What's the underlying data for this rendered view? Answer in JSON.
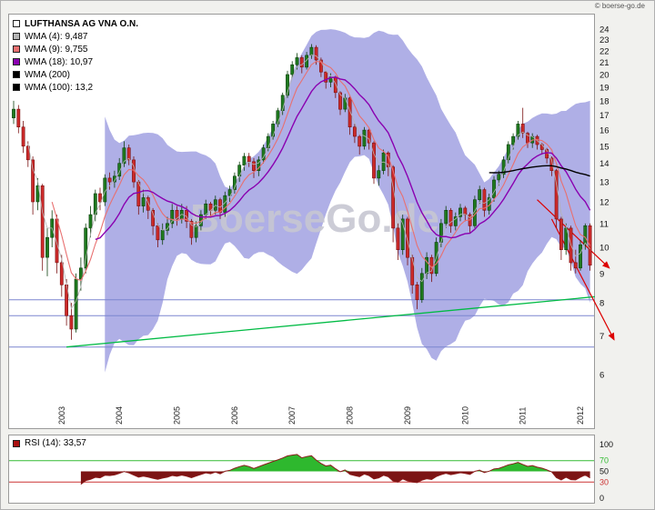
{
  "page": {
    "credit": "© boerse-go.de",
    "background": "#f1f1ee"
  },
  "main_chart": {
    "watermark": "BoerseGo.de",
    "watermark_color": "#c6c6d2"
  },
  "chart_data": {
    "type": "candlestick",
    "title": "LUFTHANSA AG VNA O.N.",
    "scale": "log",
    "y_ticks": [
      24,
      23,
      22,
      21,
      20,
      19,
      18,
      17,
      16,
      15,
      14,
      13,
      12,
      11,
      10,
      9,
      8,
      7,
      6
    ],
    "x_ticks": [
      "2003",
      "2004",
      "2005",
      "2006",
      "2007",
      "2008",
      "2009",
      "2010",
      "2011",
      "2012"
    ],
    "ylim": [
      5.6,
      24.5
    ],
    "candle_colors": {
      "up_fill": "#1f7a1f",
      "up_stroke": "#0c3f0c",
      "down_fill": "#cc2a2a",
      "down_stroke": "#7a1010"
    },
    "band": {
      "name": "envelope-band",
      "period": 20,
      "stdev": 2,
      "color": "#9b9be0",
      "opacity": 0.8
    },
    "overlays": [
      {
        "name": "WMA (4)",
        "period": 4,
        "value": "9,487",
        "color": "#b4b4b4",
        "width": 0.8
      },
      {
        "name": "WMA (9)",
        "period": 9,
        "value": "9,755",
        "color": "#e87070",
        "width": 1.1
      },
      {
        "name": "WMA (18)",
        "period": 18,
        "value": "10,97",
        "color": "#8a00b0",
        "width": 1.4
      },
      {
        "name": "WMA (200)",
        "period": 200,
        "value": "",
        "color": "#000000",
        "width": 1.2
      },
      {
        "name": "WMA (100)",
        "period": 100,
        "value": "13,2",
        "color": "#000000",
        "width": 1.4
      }
    ],
    "support": {
      "levels": [
        8.1,
        7.6,
        6.7
      ],
      "color": "#7b86cf"
    },
    "trendlines": [
      {
        "name": "ascending-support",
        "color": "#00bb44",
        "from_index": 11,
        "from_price": 6.7,
        "to_index": 121,
        "to_price": 8.2,
        "arrow": false,
        "width": 1.3
      },
      {
        "name": "downtrend-1",
        "color": "#dd0000",
        "from_index": 109,
        "from_price": 12.1,
        "to_index": 124,
        "to_price": 9.2,
        "arrow": true,
        "width": 1.2
      },
      {
        "name": "downtrend-2",
        "color": "#dd0000",
        "from_index": 112,
        "from_price": 11.2,
        "to_index": 125,
        "to_price": 6.9,
        "arrow": true,
        "width": 1.2
      }
    ],
    "rsi": {
      "label": "RSI (14): 33,57",
      "period": 14,
      "current": "33,57",
      "upper": 70,
      "lower": 30,
      "y_ticks": [
        100,
        70,
        50,
        30,
        0
      ],
      "line_color": "#8b1a1a",
      "fill_above": "#2eb82e",
      "fill_below": "#7c1414",
      "upper_color": "#33bb33",
      "lower_color": "#cc3333",
      "swatch_color": "#aa1111"
    },
    "candles": [
      [
        "2002-03",
        16.8,
        18.0,
        16.4,
        17.4
      ],
      [
        "2002-04",
        17.4,
        17.7,
        15.8,
        16.2
      ],
      [
        "2002-05",
        16.2,
        16.6,
        14.6,
        15.0
      ],
      [
        "2002-06",
        15.0,
        15.3,
        13.8,
        14.2
      ],
      [
        "2002-07",
        14.2,
        14.4,
        11.4,
        12.0
      ],
      [
        "2002-08",
        12.0,
        13.2,
        11.6,
        12.8
      ],
      [
        "2002-09",
        12.8,
        12.9,
        9.1,
        9.6
      ],
      [
        "2002-10",
        9.6,
        10.8,
        8.9,
        10.4
      ],
      [
        "2002-11",
        10.4,
        11.6,
        10.0,
        11.2
      ],
      [
        "2002-12",
        11.2,
        11.4,
        9.0,
        9.4
      ],
      [
        "2003-01",
        9.4,
        9.7,
        8.2,
        8.6
      ],
      [
        "2003-02",
        8.6,
        8.8,
        7.3,
        7.6
      ],
      [
        "2003-03",
        7.6,
        8.0,
        6.9,
        7.2
      ],
      [
        "2003-04",
        7.2,
        9.0,
        7.1,
        8.8
      ],
      [
        "2003-05",
        8.8,
        9.6,
        8.4,
        9.2
      ],
      [
        "2003-06",
        9.2,
        11.0,
        9.0,
        10.8
      ],
      [
        "2003-07",
        10.8,
        11.8,
        10.4,
        11.4
      ],
      [
        "2003-08",
        11.4,
        12.6,
        11.1,
        12.4
      ],
      [
        "2003-09",
        12.4,
        12.7,
        11.6,
        12.0
      ],
      [
        "2003-10",
        12.0,
        13.4,
        11.8,
        13.2
      ],
      [
        "2003-11",
        13.2,
        13.5,
        12.6,
        13.0
      ],
      [
        "2003-12",
        13.0,
        13.6,
        12.7,
        13.3
      ],
      [
        "2004-01",
        13.3,
        14.3,
        13.1,
        14.0
      ],
      [
        "2004-02",
        14.0,
        15.3,
        13.8,
        14.9
      ],
      [
        "2004-03",
        14.9,
        15.1,
        13.9,
        14.2
      ],
      [
        "2004-04",
        14.2,
        14.4,
        12.7,
        13.0
      ],
      [
        "2004-05",
        13.0,
        13.1,
        11.4,
        11.8
      ],
      [
        "2004-06",
        11.8,
        12.6,
        11.5,
        12.2
      ],
      [
        "2004-07",
        12.2,
        12.3,
        11.2,
        11.6
      ],
      [
        "2004-08",
        11.6,
        11.7,
        10.5,
        10.9
      ],
      [
        "2004-09",
        10.9,
        11.0,
        10.0,
        10.3
      ],
      [
        "2004-10",
        10.3,
        11.0,
        10.1,
        10.7
      ],
      [
        "2004-11",
        10.7,
        11.3,
        10.5,
        11.0
      ],
      [
        "2004-12",
        11.0,
        11.9,
        10.8,
        11.6
      ],
      [
        "2005-01",
        11.6,
        11.8,
        10.9,
        11.2
      ],
      [
        "2005-02",
        11.2,
        11.9,
        11.0,
        11.6
      ],
      [
        "2005-03",
        11.6,
        11.8,
        10.8,
        11.1
      ],
      [
        "2005-04",
        11.1,
        11.2,
        10.1,
        10.4
      ],
      [
        "2005-05",
        10.4,
        11.1,
        10.2,
        10.9
      ],
      [
        "2005-06",
        10.9,
        11.6,
        10.7,
        11.4
      ],
      [
        "2005-07",
        11.4,
        12.1,
        11.2,
        11.9
      ],
      [
        "2005-08",
        11.9,
        12.0,
        11.3,
        11.6
      ],
      [
        "2005-09",
        11.6,
        12.3,
        11.4,
        12.1
      ],
      [
        "2005-10",
        12.1,
        12.2,
        11.2,
        11.5
      ],
      [
        "2005-11",
        11.5,
        12.5,
        11.3,
        12.3
      ],
      [
        "2005-12",
        12.3,
        12.8,
        12.0,
        12.6
      ],
      [
        "2006-01",
        12.6,
        13.5,
        12.4,
        13.3
      ],
      [
        "2006-02",
        13.3,
        14.1,
        13.0,
        13.9
      ],
      [
        "2006-03",
        13.9,
        14.6,
        13.6,
        14.4
      ],
      [
        "2006-04",
        14.4,
        14.6,
        13.8,
        14.1
      ],
      [
        "2006-05",
        14.1,
        14.3,
        13.2,
        13.6
      ],
      [
        "2006-06",
        13.6,
        14.4,
        13.3,
        14.2
      ],
      [
        "2006-07",
        14.2,
        15.1,
        14.0,
        14.9
      ],
      [
        "2006-08",
        14.9,
        15.8,
        14.7,
        15.6
      ],
      [
        "2006-09",
        15.6,
        16.6,
        15.4,
        16.4
      ],
      [
        "2006-10",
        16.4,
        17.5,
        16.2,
        17.3
      ],
      [
        "2006-11",
        17.3,
        18.6,
        17.0,
        18.4
      ],
      [
        "2006-12",
        18.4,
        20.3,
        18.2,
        20.0
      ],
      [
        "2007-01",
        20.0,
        21.1,
        19.7,
        20.8
      ],
      [
        "2007-02",
        20.8,
        21.8,
        20.4,
        21.4
      ],
      [
        "2007-03",
        21.4,
        21.6,
        20.1,
        20.6
      ],
      [
        "2007-04",
        20.6,
        21.9,
        20.4,
        21.6
      ],
      [
        "2007-05",
        21.6,
        22.6,
        21.3,
        22.3
      ],
      [
        "2007-06",
        22.3,
        22.5,
        20.8,
        21.2
      ],
      [
        "2007-07",
        21.2,
        21.4,
        19.8,
        20.2
      ],
      [
        "2007-08",
        20.2,
        20.3,
        18.9,
        19.4
      ],
      [
        "2007-09",
        19.4,
        20.1,
        19.0,
        19.8
      ],
      [
        "2007-10",
        19.8,
        19.9,
        18.2,
        18.6
      ],
      [
        "2007-11",
        18.6,
        18.7,
        17.0,
        17.4
      ],
      [
        "2007-12",
        17.4,
        18.5,
        17.2,
        18.2
      ],
      [
        "2008-01",
        18.2,
        18.3,
        15.7,
        16.2
      ],
      [
        "2008-02",
        16.2,
        16.4,
        15.2,
        15.6
      ],
      [
        "2008-03",
        15.6,
        15.7,
        14.5,
        15.0
      ],
      [
        "2008-04",
        15.0,
        16.2,
        14.8,
        16.0
      ],
      [
        "2008-05",
        16.0,
        16.1,
        14.8,
        15.2
      ],
      [
        "2008-06",
        15.2,
        15.3,
        12.9,
        13.2
      ],
      [
        "2008-07",
        13.2,
        13.9,
        12.8,
        13.6
      ],
      [
        "2008-08",
        13.6,
        14.8,
        13.4,
        14.6
      ],
      [
        "2008-09",
        14.6,
        14.7,
        13.3,
        13.8
      ],
      [
        "2008-10",
        13.8,
        13.9,
        10.2,
        10.8
      ],
      [
        "2008-11",
        10.8,
        11.0,
        9.5,
        9.9
      ],
      [
        "2008-12",
        9.9,
        11.4,
        9.7,
        11.2
      ],
      [
        "2009-01",
        11.2,
        11.3,
        9.3,
        9.6
      ],
      [
        "2009-02",
        9.6,
        9.7,
        8.3,
        8.6
      ],
      [
        "2009-03",
        8.6,
        8.7,
        7.8,
        8.1
      ],
      [
        "2009-04",
        8.1,
        9.2,
        8.0,
        9.0
      ],
      [
        "2009-05",
        9.0,
        9.8,
        8.8,
        9.6
      ],
      [
        "2009-06",
        9.6,
        9.7,
        8.7,
        9.0
      ],
      [
        "2009-07",
        9.0,
        10.4,
        8.9,
        10.2
      ],
      [
        "2009-08",
        10.2,
        11.2,
        10.0,
        11.0
      ],
      [
        "2009-09",
        11.0,
        11.8,
        10.8,
        11.6
      ],
      [
        "2009-10",
        11.6,
        11.7,
        10.6,
        10.9
      ],
      [
        "2009-11",
        10.9,
        11.5,
        10.7,
        11.3
      ],
      [
        "2009-12",
        11.3,
        11.9,
        11.1,
        11.7
      ],
      [
        "2010-01",
        11.7,
        11.8,
        11.1,
        11.4
      ],
      [
        "2010-02",
        11.4,
        11.5,
        10.6,
        10.9
      ],
      [
        "2010-03",
        10.9,
        12.3,
        10.8,
        12.1
      ],
      [
        "2010-04",
        12.1,
        12.8,
        11.9,
        12.6
      ],
      [
        "2010-05",
        12.6,
        12.7,
        11.3,
        11.6
      ],
      [
        "2010-06",
        11.6,
        12.4,
        11.4,
        12.2
      ],
      [
        "2010-07",
        12.2,
        13.3,
        12.0,
        13.1
      ],
      [
        "2010-08",
        13.1,
        13.6,
        12.8,
        13.4
      ],
      [
        "2010-09",
        13.4,
        14.4,
        13.2,
        14.2
      ],
      [
        "2010-10",
        14.2,
        15.3,
        14.0,
        15.1
      ],
      [
        "2010-11",
        15.1,
        15.8,
        14.8,
        15.6
      ],
      [
        "2010-12",
        15.6,
        16.6,
        15.4,
        16.4
      ],
      [
        "2011-01",
        16.4,
        17.5,
        15.5,
        15.8
      ],
      [
        "2011-02",
        15.8,
        15.9,
        14.9,
        15.2
      ],
      [
        "2011-03",
        15.2,
        15.8,
        14.9,
        15.6
      ],
      [
        "2011-04",
        15.6,
        15.7,
        14.8,
        15.1
      ],
      [
        "2011-05",
        15.1,
        15.2,
        14.5,
        14.8
      ],
      [
        "2011-06",
        14.8,
        14.9,
        14.0,
        14.3
      ],
      [
        "2011-07",
        14.3,
        14.4,
        13.3,
        13.6
      ],
      [
        "2011-08",
        13.6,
        13.7,
        10.8,
        11.2
      ],
      [
        "2011-09",
        11.2,
        11.3,
        9.5,
        9.9
      ],
      [
        "2011-10",
        9.9,
        11.0,
        9.7,
        10.8
      ],
      [
        "2011-11",
        10.8,
        10.9,
        9.1,
        9.4
      ],
      [
        "2011-12",
        9.4,
        9.9,
        9.0,
        9.2
      ],
      [
        "2012-01",
        9.2,
        10.3,
        9.1,
        10.1
      ],
      [
        "2012-02",
        10.1,
        11.0,
        9.9,
        10.9
      ],
      [
        "2012-03",
        10.9,
        11.0,
        9.1,
        9.3
      ]
    ]
  }
}
